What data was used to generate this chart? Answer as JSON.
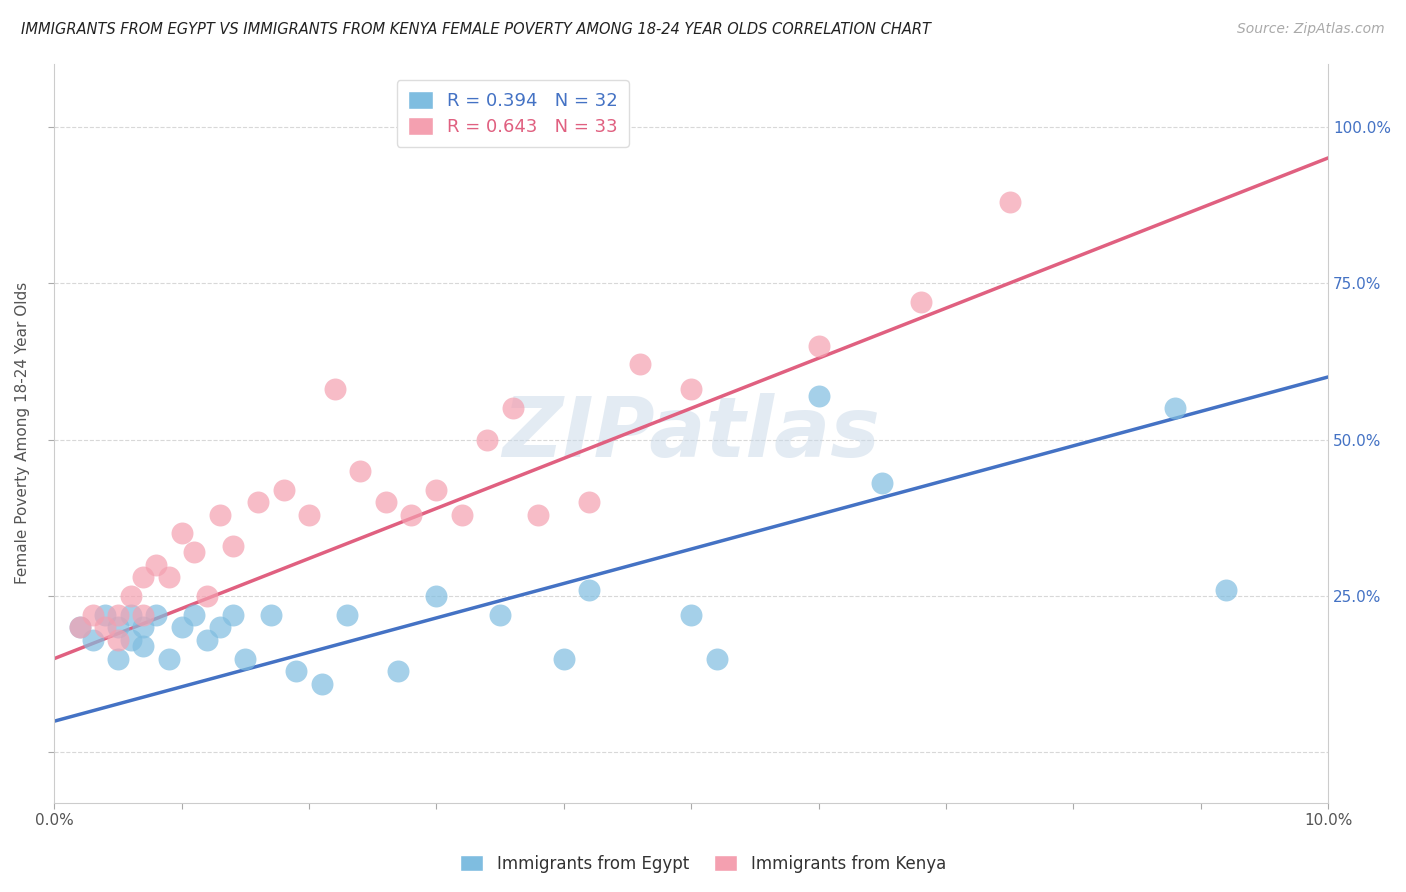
{
  "title": "IMMIGRANTS FROM EGYPT VS IMMIGRANTS FROM KENYA FEMALE POVERTY AMONG 18-24 YEAR OLDS CORRELATION CHART",
  "source": "Source: ZipAtlas.com",
  "ylabel": "Female Poverty Among 18-24 Year Olds",
  "ytick_vals": [
    0.0,
    0.25,
    0.5,
    0.75,
    1.0
  ],
  "ytick_labels": [
    "",
    "25.0%",
    "50.0%",
    "75.0%",
    "100.0%"
  ],
  "xlim": [
    0,
    0.1
  ],
  "ylim": [
    -0.08,
    1.1
  ],
  "egypt_color": "#7fbde0",
  "kenya_color": "#f4a0b0",
  "egypt_line_color": "#4472c4",
  "kenya_line_color": "#e06080",
  "watermark": "ZIPatlas",
  "egypt_scatter_x": [
    0.002,
    0.003,
    0.004,
    0.005,
    0.005,
    0.006,
    0.006,
    0.007,
    0.007,
    0.008,
    0.009,
    0.01,
    0.011,
    0.012,
    0.013,
    0.014,
    0.015,
    0.017,
    0.019,
    0.021,
    0.023,
    0.027,
    0.03,
    0.035,
    0.04,
    0.042,
    0.05,
    0.052,
    0.06,
    0.065,
    0.088,
    0.092
  ],
  "egypt_scatter_y": [
    0.2,
    0.18,
    0.22,
    0.2,
    0.15,
    0.22,
    0.18,
    0.17,
    0.2,
    0.22,
    0.15,
    0.2,
    0.22,
    0.18,
    0.2,
    0.22,
    0.15,
    0.22,
    0.13,
    0.11,
    0.22,
    0.13,
    0.25,
    0.22,
    0.15,
    0.26,
    0.22,
    0.15,
    0.57,
    0.43,
    0.55,
    0.26
  ],
  "kenya_scatter_x": [
    0.002,
    0.003,
    0.004,
    0.005,
    0.005,
    0.006,
    0.007,
    0.007,
    0.008,
    0.009,
    0.01,
    0.011,
    0.012,
    0.013,
    0.014,
    0.016,
    0.018,
    0.02,
    0.022,
    0.024,
    0.026,
    0.028,
    0.03,
    0.032,
    0.034,
    0.036,
    0.038,
    0.042,
    0.046,
    0.05,
    0.06,
    0.068,
    0.075
  ],
  "kenya_scatter_y": [
    0.2,
    0.22,
    0.2,
    0.22,
    0.18,
    0.25,
    0.22,
    0.28,
    0.3,
    0.28,
    0.35,
    0.32,
    0.25,
    0.38,
    0.33,
    0.4,
    0.42,
    0.38,
    0.58,
    0.45,
    0.4,
    0.38,
    0.42,
    0.38,
    0.5,
    0.55,
    0.38,
    0.4,
    0.62,
    0.58,
    0.65,
    0.72,
    0.88
  ],
  "egypt_line_x0": 0.0,
  "egypt_line_y0": 0.05,
  "egypt_line_x1": 0.1,
  "egypt_line_y1": 0.6,
  "kenya_line_x0": 0.0,
  "kenya_line_y0": 0.15,
  "kenya_line_x1": 0.1,
  "kenya_line_y1": 0.95
}
